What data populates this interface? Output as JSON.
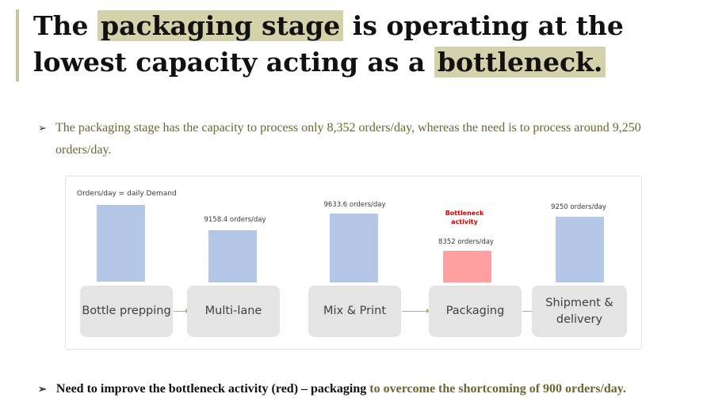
{
  "slide": {
    "title_part1": "The ",
    "title_highlight1": "packaging stage",
    "title_part2": " is operating at the lowest capacity acting as a ",
    "title_highlight2": "bottleneck.",
    "bullet1": "The packaging stage has the capacity to process only 8,352 orders/day, whereas the need is to process around 9,250 orders/day.",
    "bullet2_bold": "Need to improve the bottleneck activity (red) – packaging",
    "bullet2_tail": " to overcome the shortcoming of 900 orders/day.",
    "bullet_icon": "arrow-bullet-icon"
  },
  "diagram": {
    "demand_label": "Orders/day = daily Demand",
    "bottleneck_label": "Bottleneck activity",
    "stages": [
      {
        "name": "Bottle prepping",
        "value_label": "",
        "capacity": 9250,
        "color": "#b4c7e7"
      },
      {
        "name": "Multi-lane",
        "value_label": "9158.4 orders/day",
        "capacity": 9158.4,
        "color": "#b4c7e7"
      },
      {
        "name": "Mix & Print",
        "value_label": "9633.6 orders/day",
        "capacity": 9633.6,
        "color": "#b4c7e7"
      },
      {
        "name": "Packaging",
        "value_label": "8352 orders/day",
        "capacity": 8352,
        "color": "#ff9f9f"
      },
      {
        "name": "Shipment & delivery",
        "value_label": "9250 orders/day",
        "capacity": 9250,
        "color": "#b4c7e7"
      }
    ]
  },
  "colors": {
    "highlight": "#d4d2ab",
    "accent_text": "#6b6730",
    "bar_blue": "#b4c7e7",
    "bar_red": "#ff9f9f",
    "bottleneck_red": "#cc0000"
  }
}
